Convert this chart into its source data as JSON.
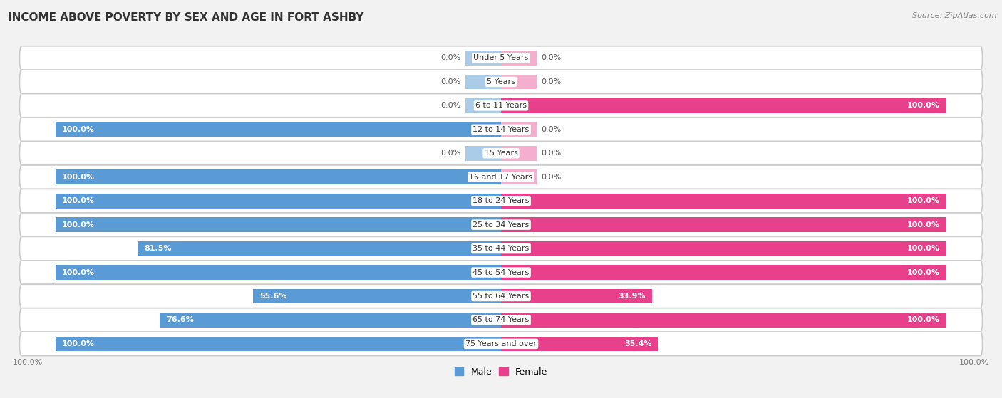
{
  "title": "INCOME ABOVE POVERTY BY SEX AND AGE IN FORT ASHBY",
  "source": "Source: ZipAtlas.com",
  "categories": [
    "Under 5 Years",
    "5 Years",
    "6 to 11 Years",
    "12 to 14 Years",
    "15 Years",
    "16 and 17 Years",
    "18 to 24 Years",
    "25 to 34 Years",
    "35 to 44 Years",
    "45 to 54 Years",
    "55 to 64 Years",
    "65 to 74 Years",
    "75 Years and over"
  ],
  "male": [
    0.0,
    0.0,
    0.0,
    100.0,
    0.0,
    100.0,
    100.0,
    100.0,
    81.5,
    100.0,
    55.6,
    76.6,
    100.0
  ],
  "female": [
    0.0,
    0.0,
    100.0,
    0.0,
    0.0,
    0.0,
    100.0,
    100.0,
    100.0,
    100.0,
    33.9,
    100.0,
    35.4
  ],
  "male_color_full": "#5b9bd5",
  "male_color_stub": "#aacce8",
  "female_color_full": "#e8408a",
  "female_color_stub": "#f4aece",
  "bg_color": "#f2f2f2",
  "row_bg_color": "#e8e8e8",
  "title_fontsize": 11,
  "source_fontsize": 8,
  "label_fontsize": 8,
  "cat_fontsize": 8,
  "bar_height": 0.62,
  "stub_val": 8.0,
  "xlim": 100.0
}
